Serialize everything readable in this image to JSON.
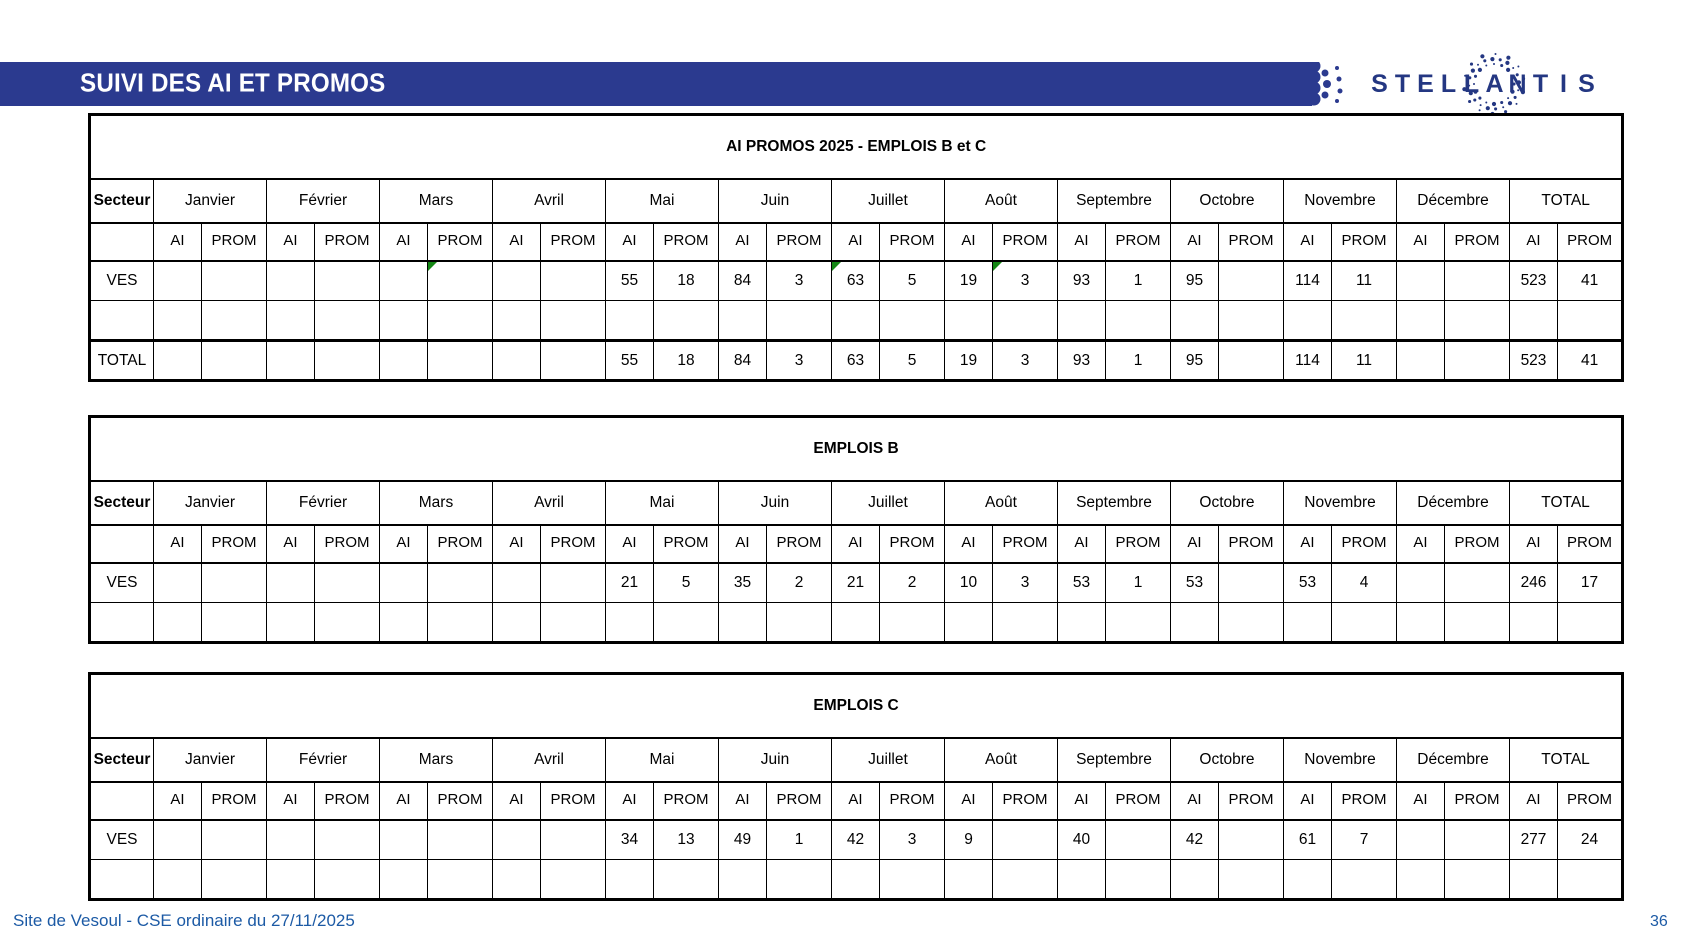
{
  "header": {
    "title": "SUIVI DES AI ET PROMOS",
    "brand": "STELLANTIS",
    "bar_color": "#2b3a8f",
    "brand_color": "#243782"
  },
  "labels": {
    "secteur": "Secteur",
    "ai": "AI",
    "prom": "PROM"
  },
  "months": [
    "Janvier",
    "Février",
    "Mars",
    "Avril",
    "Mai",
    "Juin",
    "Juillet",
    "Août",
    "Septembre",
    "Octobre",
    "Novembre",
    "Décembre",
    "TOTAL"
  ],
  "flag_color": "#148714",
  "tables": [
    {
      "id": "ai-promos-2025-emplois-b-et-c",
      "title": "AI PROMOS 2025 - EMPLOIS B et C",
      "rows": [
        {
          "label": "VES",
          "values": [
            "",
            "",
            "",
            "",
            "",
            "",
            "",
            "",
            "55",
            "18",
            "84",
            "3",
            "63",
            "5",
            "19",
            "3",
            "93",
            "1",
            "95",
            "",
            "114",
            "11",
            "",
            "",
            "523",
            "41"
          ],
          "flags": [
            5,
            12,
            15
          ]
        },
        {
          "label": "",
          "values": []
        },
        {
          "label": "TOTAL",
          "total_row": true,
          "values": [
            "",
            "",
            "",
            "",
            "",
            "",
            "",
            "",
            "55",
            "18",
            "84",
            "3",
            "63",
            "5",
            "19",
            "3",
            "93",
            "1",
            "95",
            "",
            "114",
            "11",
            "",
            "",
            "523",
            "41"
          ]
        }
      ]
    },
    {
      "id": "emplois-b",
      "title": "EMPLOIS B",
      "rows": [
        {
          "label": "VES",
          "values": [
            "",
            "",
            "",
            "",
            "",
            "",
            "",
            "",
            "21",
            "5",
            "35",
            "2",
            "21",
            "2",
            "10",
            "3",
            "53",
            "1",
            "53",
            "",
            "53",
            "4",
            "",
            "",
            "246",
            "17"
          ]
        },
        {
          "label": "",
          "values": []
        }
      ]
    },
    {
      "id": "emplois-c",
      "title": "EMPLOIS C",
      "rows": [
        {
          "label": "VES",
          "values": [
            "",
            "",
            "",
            "",
            "",
            "",
            "",
            "",
            "34",
            "13",
            "49",
            "1",
            "42",
            "3",
            "9",
            "",
            "40",
            "",
            "42",
            "",
            "61",
            "7",
            "",
            "",
            "277",
            "24"
          ]
        },
        {
          "label": "",
          "values": []
        }
      ]
    }
  ],
  "footer": {
    "left": "Site de Vesoul - CSE ordinaire du 27/11/2025",
    "page": "36",
    "color": "#1c5aa5"
  }
}
